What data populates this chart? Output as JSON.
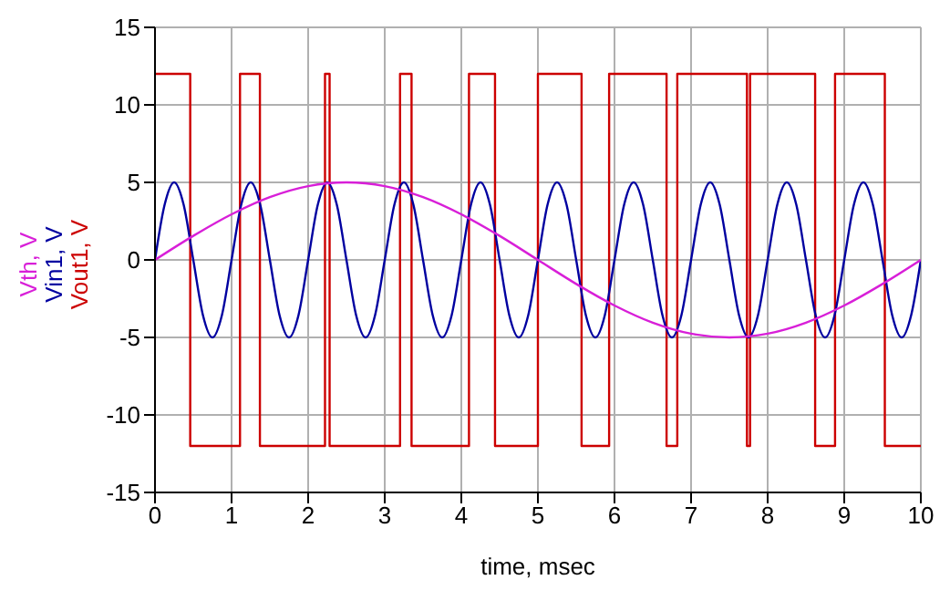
{
  "chart_data": {
    "type": "line",
    "xlabel": "time, msec",
    "xlim": [
      0,
      10
    ],
    "xticks": [
      0,
      1,
      2,
      3,
      4,
      5,
      6,
      7,
      8,
      9,
      10
    ],
    "ylim": [
      -15,
      15
    ],
    "yticks": [
      -15,
      -10,
      -5,
      0,
      5,
      10,
      15
    ],
    "grid": true,
    "legend": "left",
    "marker": "none",
    "line_style": "solid",
    "series": [
      {
        "name": "Vth, V",
        "color": "#d81fd8",
        "x": [
          0,
          0.5,
          1,
          1.5,
          2,
          2.5,
          3,
          3.5,
          4,
          4.5,
          5,
          5.5,
          6,
          6.5,
          7,
          7.5,
          8,
          8.5,
          9,
          9.5,
          10
        ],
        "values": [
          0,
          1.55,
          2.94,
          4.05,
          4.76,
          5,
          4.76,
          4.05,
          2.94,
          1.55,
          0,
          -1.55,
          -2.94,
          -4.05,
          -4.76,
          -5,
          -4.76,
          -4.05,
          -2.94,
          -1.55,
          0
        ]
      },
      {
        "name": "Vin1, V",
        "color": "#0000a0",
        "x": [
          0,
          0.125,
          0.25,
          0.375,
          0.5,
          0.625,
          0.75,
          0.875,
          1,
          1.125,
          1.25,
          1.375,
          1.5,
          1.625,
          1.75,
          1.875,
          2,
          2.125,
          2.25,
          2.375,
          2.5,
          2.625,
          2.75,
          2.875,
          3,
          3.125,
          3.25,
          3.375,
          3.5,
          3.625,
          3.75,
          3.875,
          4,
          4.125,
          4.25,
          4.375,
          4.5,
          4.625,
          4.75,
          4.875,
          5,
          5.125,
          5.25,
          5.375,
          5.5,
          5.625,
          5.75,
          5.875,
          6,
          6.125,
          6.25,
          6.375,
          6.5,
          6.625,
          6.75,
          6.875,
          7,
          7.125,
          7.25,
          7.375,
          7.5,
          7.625,
          7.75,
          7.875,
          8,
          8.125,
          8.25,
          8.375,
          8.5,
          8.625,
          8.75,
          8.875,
          9,
          9.125,
          9.25,
          9.375,
          9.5,
          9.625,
          9.75,
          9.875,
          10
        ],
        "values": [
          0,
          3.54,
          5,
          3.54,
          0,
          -3.54,
          -5,
          -3.54,
          0,
          3.54,
          5,
          3.54,
          0,
          -3.54,
          -5,
          -3.54,
          0,
          3.54,
          5,
          3.54,
          0,
          -3.54,
          -5,
          -3.54,
          0,
          3.54,
          5,
          3.54,
          0,
          -3.54,
          -5,
          -3.54,
          0,
          3.54,
          5,
          3.54,
          0,
          -3.54,
          -5,
          -3.54,
          0,
          3.54,
          5,
          3.54,
          0,
          -3.54,
          -5,
          -3.54,
          0,
          3.54,
          5,
          3.54,
          0,
          -3.54,
          -5,
          -3.54,
          0,
          3.54,
          5,
          3.54,
          0,
          -3.54,
          -5,
          -3.54,
          0,
          3.54,
          5,
          3.54,
          0,
          -3.54,
          -5,
          -3.54,
          0,
          3.54,
          5,
          3.54,
          0,
          -3.54,
          -5,
          -3.54,
          0
        ]
      },
      {
        "name": "Vout1, V",
        "type": "step",
        "color": "#cc0000",
        "x": [
          0,
          0.46,
          1.11,
          1.37,
          2.22,
          2.28,
          3.2,
          3.35,
          4.1,
          4.44,
          5,
          5.57,
          5.93,
          6.68,
          6.82,
          7.73,
          7.77,
          8.62,
          8.88,
          9.53,
          10
        ],
        "values": [
          12,
          -12,
          12,
          -12,
          12,
          -12,
          12,
          -12,
          12,
          -12,
          12,
          -12,
          12,
          -12,
          12,
          -12,
          12,
          -12,
          12,
          -12,
          -12
        ]
      }
    ]
  }
}
